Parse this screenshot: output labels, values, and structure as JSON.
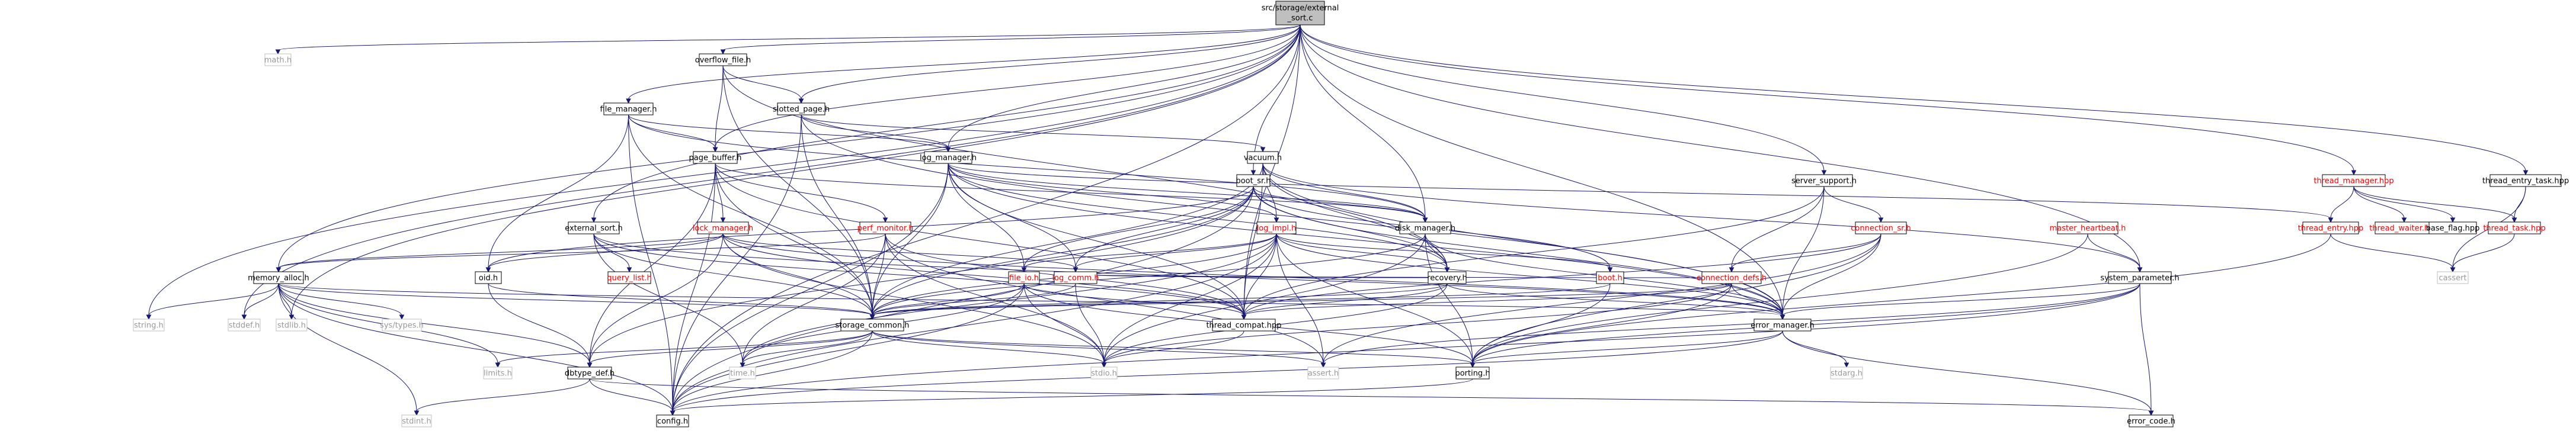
{
  "colors": {
    "edge": "#191970",
    "normal_text": "#000000",
    "link_text": "#ff0000",
    "muted_text": "#999999",
    "node_fill": "#ffffff",
    "root_fill": "#bfbfbf",
    "node_border": "#000000",
    "muted_border": "#bfbfbf"
  },
  "root": [
    "src/storage/external",
    "_sort.c"
  ],
  "nodes": [
    {
      "id": "math_h",
      "label": "math.h",
      "style": "muted"
    },
    {
      "id": "overflow_file_h",
      "label": "overflow_file.h",
      "style": "normal"
    },
    {
      "id": "file_manager_h",
      "label": "file_manager.h",
      "style": "normal"
    },
    {
      "id": "slotted_page_h",
      "label": "slotted_page.h",
      "style": "normal"
    },
    {
      "id": "log_manager_h",
      "label": "log_manager.h",
      "style": "normal"
    },
    {
      "id": "page_buffer_h",
      "label": "page_buffer.h",
      "style": "normal"
    },
    {
      "id": "vacuum_h",
      "label": "vacuum.h",
      "style": "normal"
    },
    {
      "id": "boot_sr_h",
      "label": "boot_sr.h",
      "style": "normal"
    },
    {
      "id": "server_support_h",
      "label": "server_support.h",
      "style": "normal"
    },
    {
      "id": "thread_manager_hpp",
      "label": "thread_manager.hpp",
      "style": "link"
    },
    {
      "id": "thread_entry_task_hpp",
      "label": "thread_entry_task.hpp",
      "style": "normal"
    },
    {
      "id": "external_sort_h",
      "label": "external_sort.h",
      "style": "normal"
    },
    {
      "id": "lock_manager_h",
      "label": "lock_manager.h",
      "style": "link"
    },
    {
      "id": "perf_monitor_h",
      "label": "perf_monitor.h",
      "style": "link"
    },
    {
      "id": "log_impl_h",
      "label": "log_impl.h",
      "style": "link"
    },
    {
      "id": "disk_manager_h",
      "label": "disk_manager.h",
      "style": "normal"
    },
    {
      "id": "connection_sr_h",
      "label": "connection_sr.h",
      "style": "link"
    },
    {
      "id": "master_heartbeat_h",
      "label": "master_heartbeat.h",
      "style": "link"
    },
    {
      "id": "thread_entry_hpp",
      "label": "thread_entry.hpp",
      "style": "link"
    },
    {
      "id": "thread_waiter_hpp",
      "label": "thread_waiter.hpp",
      "style": "link"
    },
    {
      "id": "base_flag_hpp",
      "label": "base_flag.hpp",
      "style": "normal"
    },
    {
      "id": "thread_task_hpp",
      "label": "thread_task.hpp",
      "style": "link"
    },
    {
      "id": "memory_alloc_h",
      "label": "memory_alloc.h",
      "style": "normal"
    },
    {
      "id": "oid_h",
      "label": "oid.h",
      "style": "normal"
    },
    {
      "id": "query_list_h",
      "label": "query_list.h",
      "style": "link"
    },
    {
      "id": "file_io_h",
      "label": "file_io.h",
      "style": "link"
    },
    {
      "id": "log_comm_h",
      "label": "log_comm.h",
      "style": "link"
    },
    {
      "id": "recovery_h",
      "label": "recovery.h",
      "style": "normal"
    },
    {
      "id": "boot_h",
      "label": "boot.h",
      "style": "link"
    },
    {
      "id": "connection_defs_h",
      "label": "connection_defs.h",
      "style": "link"
    },
    {
      "id": "system_parameter_h",
      "label": "system_parameter.h",
      "style": "normal"
    },
    {
      "id": "cassert",
      "label": "cassert",
      "style": "muted"
    },
    {
      "id": "string_h",
      "label": "string.h",
      "style": "muted"
    },
    {
      "id": "stddef_h",
      "label": "stddef.h",
      "style": "muted"
    },
    {
      "id": "stdlib_h",
      "label": "stdlib.h",
      "style": "muted"
    },
    {
      "id": "sys_types_h",
      "label": "sys/types.h",
      "style": "muted"
    },
    {
      "id": "storage_common_h",
      "label": "storage_common.h",
      "style": "normal"
    },
    {
      "id": "thread_compat_hpp",
      "label": "thread_compat.hpp",
      "style": "normal"
    },
    {
      "id": "error_manager_h",
      "label": "error_manager.h",
      "style": "normal"
    },
    {
      "id": "stdarg_h",
      "label": "stdarg.h",
      "style": "muted"
    },
    {
      "id": "limits_h",
      "label": "limits.h",
      "style": "muted"
    },
    {
      "id": "dbtype_def_h",
      "label": "dbtype_def.h",
      "style": "normal"
    },
    {
      "id": "time_h",
      "label": "time.h",
      "style": "muted"
    },
    {
      "id": "stdio_h",
      "label": "stdio.h",
      "style": "muted"
    },
    {
      "id": "assert_h",
      "label": "assert.h",
      "style": "muted"
    },
    {
      "id": "porting_h",
      "label": "porting.h",
      "style": "normal"
    },
    {
      "id": "stdint_h",
      "label": "stdint.h",
      "style": "muted"
    },
    {
      "id": "config_h",
      "label": "config.h",
      "style": "normal"
    },
    {
      "id": "error_code_h",
      "label": "error_code.h",
      "style": "normal"
    }
  ],
  "edges": [
    [
      "root",
      "math_h"
    ],
    [
      "root",
      "overflow_file_h"
    ],
    [
      "root",
      "file_manager_h"
    ],
    [
      "root",
      "slotted_page_h"
    ],
    [
      "root",
      "log_manager_h"
    ],
    [
      "root",
      "page_buffer_h"
    ],
    [
      "root",
      "boot_sr_h"
    ],
    [
      "root",
      "server_support_h"
    ],
    [
      "root",
      "thread_manager_hpp"
    ],
    [
      "root",
      "thread_entry_task_hpp"
    ],
    [
      "root",
      "external_sort_h"
    ],
    [
      "root",
      "memory_alloc_h"
    ],
    [
      "root",
      "string_h"
    ],
    [
      "root",
      "stddef_h"
    ],
    [
      "root",
      "stdlib_h"
    ],
    [
      "root",
      "config_h"
    ],
    [
      "root",
      "system_parameter_h"
    ],
    [
      "root",
      "error_manager_h"
    ],
    [
      "root",
      "disk_manager_h"
    ],
    [
      "root",
      "thread_compat_hpp"
    ],
    [
      "overflow_file_h",
      "slotted_page_h"
    ],
    [
      "overflow_file_h",
      "page_buffer_h"
    ],
    [
      "overflow_file_h",
      "recovery_h"
    ],
    [
      "overflow_file_h",
      "storage_common_h"
    ],
    [
      "file_manager_h",
      "page_buffer_h"
    ],
    [
      "file_manager_h",
      "log_manager_h"
    ],
    [
      "file_manager_h",
      "disk_manager_h"
    ],
    [
      "file_manager_h",
      "oid_h"
    ],
    [
      "file_manager_h",
      "storage_common_h"
    ],
    [
      "file_manager_h",
      "config_h"
    ],
    [
      "slotted_page_h",
      "log_manager_h"
    ],
    [
      "slotted_page_h",
      "vacuum_h"
    ],
    [
      "slotted_page_h",
      "storage_common_h"
    ],
    [
      "slotted_page_h",
      "error_manager_h"
    ],
    [
      "slotted_page_h",
      "config_h"
    ],
    [
      "log_manager_h",
      "log_impl_h"
    ],
    [
      "log_manager_h",
      "disk_manager_h"
    ],
    [
      "log_manager_h",
      "recovery_h"
    ],
    [
      "log_manager_h",
      "file_io_h"
    ],
    [
      "log_manager_h",
      "log_comm_h"
    ],
    [
      "log_manager_h",
      "storage_common_h"
    ],
    [
      "log_manager_h",
      "error_manager_h"
    ],
    [
      "log_manager_h",
      "thread_compat_hpp"
    ],
    [
      "log_manager_h",
      "config_h"
    ],
    [
      "log_manager_h",
      "thread_entry_hpp"
    ],
    [
      "page_buffer_h",
      "lock_manager_h"
    ],
    [
      "page_buffer_h",
      "perf_monitor_h"
    ],
    [
      "page_buffer_h",
      "disk_manager_h"
    ],
    [
      "page_buffer_h",
      "storage_common_h"
    ],
    [
      "page_buffer_h",
      "thread_compat_hpp"
    ],
    [
      "page_buffer_h",
      "dbtype_def_h"
    ],
    [
      "page_buffer_h",
      "config_h"
    ],
    [
      "vacuum_h",
      "log_impl_h"
    ],
    [
      "vacuum_h",
      "disk_manager_h"
    ],
    [
      "vacuum_h",
      "recovery_h"
    ],
    [
      "vacuum_h",
      "system_parameter_h"
    ],
    [
      "vacuum_h",
      "storage_common_h"
    ],
    [
      "vacuum_h",
      "error_manager_h"
    ],
    [
      "vacuum_h",
      "thread_compat_hpp"
    ],
    [
      "boot_sr_h",
      "disk_manager_h"
    ],
    [
      "boot_sr_h",
      "log_comm_h"
    ],
    [
      "boot_sr_h",
      "file_io_h"
    ],
    [
      "boot_sr_h",
      "boot_h"
    ],
    [
      "boot_sr_h",
      "recovery_h"
    ],
    [
      "boot_sr_h",
      "storage_common_h"
    ],
    [
      "boot_sr_h",
      "error_manager_h"
    ],
    [
      "boot_sr_h",
      "oid_h"
    ],
    [
      "boot_sr_h",
      "dbtype_def_h"
    ],
    [
      "boot_sr_h",
      "config_h"
    ],
    [
      "server_support_h",
      "connection_sr_h"
    ],
    [
      "server_support_h",
      "connection_defs_h"
    ],
    [
      "server_support_h",
      "thread_compat_hpp"
    ],
    [
      "server_support_h",
      "error_manager_h"
    ],
    [
      "thread_manager_hpp",
      "thread_entry_hpp"
    ],
    [
      "thread_manager_hpp",
      "thread_waiter_hpp"
    ],
    [
      "thread_manager_hpp",
      "base_flag_hpp"
    ],
    [
      "thread_manager_hpp",
      "thread_task_hpp"
    ],
    [
      "thread_entry_task_hpp",
      "thread_task_hpp"
    ],
    [
      "thread_entry_task_hpp",
      "cassert"
    ],
    [
      "external_sort_h",
      "query_list_h"
    ],
    [
      "external_sort_h",
      "storage_common_h"
    ],
    [
      "external_sort_h",
      "thread_compat_hpp"
    ],
    [
      "external_sort_h",
      "error_manager_h"
    ],
    [
      "external_sort_h",
      "time_h"
    ],
    [
      "lock_manager_h",
      "oid_h"
    ],
    [
      "lock_manager_h",
      "storage_common_h"
    ],
    [
      "lock_manager_h",
      "log_comm_h"
    ],
    [
      "lock_manager_h",
      "thread_compat_hpp"
    ],
    [
      "lock_manager_h",
      "error_manager_h"
    ],
    [
      "lock_manager_h",
      "memory_alloc_h"
    ],
    [
      "lock_manager_h",
      "dbtype_def_h"
    ],
    [
      "lock_manager_h",
      "stdio_h"
    ],
    [
      "perf_monitor_h",
      "storage_common_h"
    ],
    [
      "perf_monitor_h",
      "thread_compat_hpp"
    ],
    [
      "perf_monitor_h",
      "memory_alloc_h"
    ],
    [
      "perf_monitor_h",
      "time_h"
    ],
    [
      "perf_monitor_h",
      "stdio_h"
    ],
    [
      "perf_monitor_h",
      "assert_h"
    ],
    [
      "log_impl_h",
      "recovery_h"
    ],
    [
      "log_impl_h",
      "file_io_h"
    ],
    [
      "log_impl_h",
      "log_comm_h"
    ],
    [
      "log_impl_h",
      "storage_common_h"
    ],
    [
      "log_impl_h",
      "thread_compat_hpp"
    ],
    [
      "log_impl_h",
      "error_manager_h"
    ],
    [
      "log_impl_h",
      "boot_h"
    ],
    [
      "log_impl_h",
      "porting_h"
    ],
    [
      "log_impl_h",
      "assert_h"
    ],
    [
      "log_impl_h",
      "config_h"
    ],
    [
      "log_impl_h",
      "stdio_h"
    ],
    [
      "log_impl_h",
      "time_h"
    ],
    [
      "disk_manager_h",
      "recovery_h"
    ],
    [
      "disk_manager_h",
      "storage_common_h"
    ],
    [
      "disk_manager_h",
      "error_manager_h"
    ],
    [
      "disk_manager_h",
      "stdio_h"
    ],
    [
      "disk_manager_h",
      "porting_h"
    ],
    [
      "connection_sr_h",
      "connection_defs_h"
    ],
    [
      "connection_sr_h",
      "error_manager_h"
    ],
    [
      "connection_sr_h",
      "porting_h"
    ],
    [
      "connection_sr_h",
      "assert_h"
    ],
    [
      "connection_sr_h",
      "thread_compat_hpp"
    ],
    [
      "master_heartbeat_h",
      "system_parameter_h"
    ],
    [
      "master_heartbeat_h",
      "porting_h"
    ],
    [
      "thread_entry_hpp",
      "porting_h"
    ],
    [
      "thread_entry_hpp",
      "cassert"
    ],
    [
      "thread_task_hpp",
      "cassert"
    ],
    [
      "memory_alloc_h",
      "string_h"
    ],
    [
      "memory_alloc_h",
      "stddef_h"
    ],
    [
      "memory_alloc_h",
      "stdlib_h"
    ],
    [
      "memory_alloc_h",
      "sys_types_h"
    ],
    [
      "memory_alloc_h",
      "limits_h"
    ],
    [
      "memory_alloc_h",
      "stdint_h"
    ],
    [
      "memory_alloc_h",
      "dbtype_def_h"
    ],
    [
      "memory_alloc_h",
      "error_manager_h"
    ],
    [
      "memory_alloc_h",
      "config_h"
    ],
    [
      "memory_alloc_h",
      "storage_common_h"
    ],
    [
      "oid_h",
      "storage_common_h"
    ],
    [
      "oid_h",
      "dbtype_def_h"
    ],
    [
      "file_io_h",
      "storage_common_h"
    ],
    [
      "file_io_h",
      "porting_h"
    ],
    [
      "file_io_h",
      "stdio_h"
    ],
    [
      "file_io_h",
      "time_h"
    ],
    [
      "file_io_h",
      "config_h"
    ],
    [
      "file_io_h",
      "thread_compat_hpp"
    ],
    [
      "log_comm_h",
      "storage_common_h"
    ],
    [
      "log_comm_h",
      "stdio_h"
    ],
    [
      "recovery_h",
      "storage_common_h"
    ],
    [
      "recovery_h",
      "error_manager_h"
    ],
    [
      "recovery_h",
      "thread_compat_hpp"
    ],
    [
      "recovery_h",
      "log_comm_h"
    ],
    [
      "recovery_h",
      "stdio_h"
    ],
    [
      "boot_h",
      "storage_common_h"
    ],
    [
      "boot_h",
      "porting_h"
    ],
    [
      "connection_defs_h",
      "error_manager_h"
    ],
    [
      "connection_defs_h",
      "storage_common_h"
    ],
    [
      "connection_defs_h",
      "porting_h"
    ],
    [
      "connection_defs_h",
      "stdio_h"
    ],
    [
      "connection_defs_h",
      "thread_compat_hpp"
    ],
    [
      "connection_defs_h",
      "log_comm_h"
    ],
    [
      "system_parameter_h",
      "error_manager_h"
    ],
    [
      "system_parameter_h",
      "porting_h"
    ],
    [
      "system_parameter_h",
      "assert_h"
    ],
    [
      "system_parameter_h",
      "config_h"
    ],
    [
      "system_parameter_h",
      "error_code_h"
    ],
    [
      "storage_common_h",
      "config_h"
    ],
    [
      "storage_common_h",
      "porting_h"
    ],
    [
      "storage_common_h",
      "dbtype_def_h"
    ],
    [
      "storage_common_h",
      "limits_h"
    ],
    [
      "storage_common_h",
      "time_h"
    ],
    [
      "storage_common_h",
      "stdio_h"
    ],
    [
      "storage_common_h",
      "assert_h"
    ],
    [
      "thread_compat_hpp",
      "stdio_h"
    ],
    [
      "error_manager_h",
      "stdarg_h"
    ],
    [
      "error_manager_h",
      "porting_h"
    ],
    [
      "error_manager_h",
      "config_h"
    ],
    [
      "error_manager_h",
      "error_code_h"
    ],
    [
      "dbtype_def_h",
      "stdint_h"
    ],
    [
      "dbtype_def_h",
      "error_code_h"
    ],
    [
      "dbtype_def_h",
      "config_h"
    ],
    [
      "porting_h",
      "config_h"
    ]
  ]
}
